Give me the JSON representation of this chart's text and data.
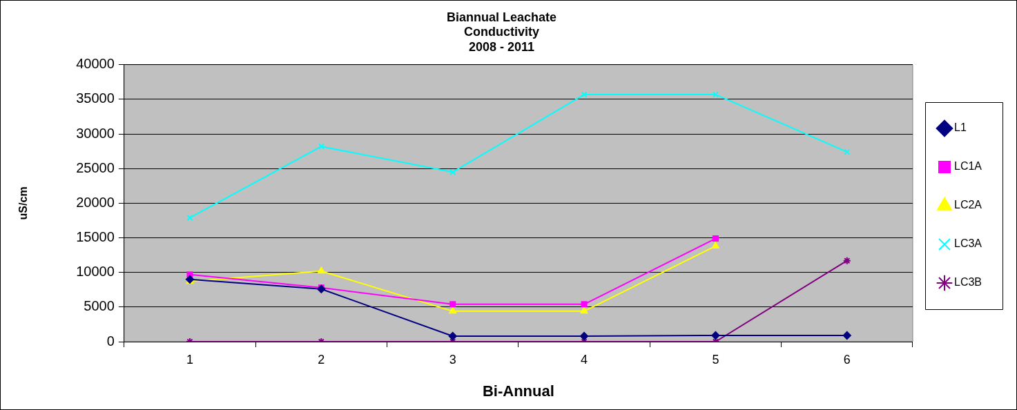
{
  "chart_data": {
    "type": "line",
    "title": "Biannual Leachate\nConductivity\n2008 - 2011",
    "xlabel": "Bi-Annual",
    "ylabel": "uS/cm",
    "categories": [
      "1",
      "2",
      "3",
      "4",
      "5",
      "6"
    ],
    "ylim": [
      0,
      40000
    ],
    "yticks": [
      0,
      5000,
      10000,
      15000,
      20000,
      25000,
      30000,
      35000,
      40000
    ],
    "grid": "y",
    "legend": "right",
    "series": [
      {
        "name": "L1",
        "color": "#000080",
        "marker": "diamond",
        "values": [
          9000,
          7600,
          800,
          800,
          900,
          900
        ]
      },
      {
        "name": "LC1A",
        "color": "#ff00ff",
        "marker": "square",
        "values": [
          9700,
          7800,
          5400,
          5400,
          14900,
          null
        ]
      },
      {
        "name": "LC2A",
        "color": "#ffff00",
        "marker": "triangle",
        "values": [
          8700,
          10200,
          4400,
          4400,
          13800,
          null
        ]
      },
      {
        "name": "LC3A",
        "color": "#00ffff",
        "marker": "cross",
        "values": [
          17900,
          28200,
          24500,
          35700,
          35700,
          27400
        ]
      },
      {
        "name": "LC3B",
        "color": "#800080",
        "marker": "cross",
        "values": [
          0,
          0,
          0,
          0,
          0,
          11700
        ]
      }
    ]
  }
}
